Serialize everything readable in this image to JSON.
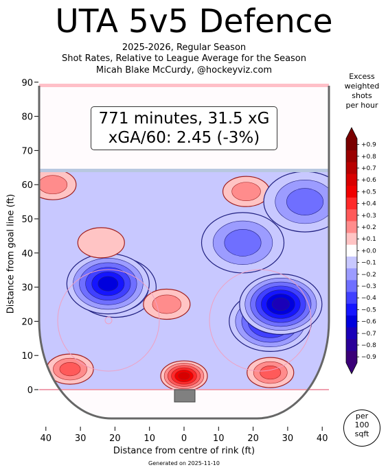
{
  "title": "UTA 5v5 Defence",
  "subtitle_lines": [
    "2025-2026, Regular Season",
    "Shot Rates, Relative to League Average for the Season",
    "Micah Blake McCurdy, @hockeyviz.com"
  ],
  "info_box": {
    "line1": "771 minutes, 31.5 xG",
    "line2": "xGA/60: 2.45 (-3%)"
  },
  "colorbar": {
    "title_lines": [
      "Excess",
      "weighted",
      "shots",
      "per hour"
    ],
    "tick_labels": [
      "+0.9",
      "+0.8",
      "+0.7",
      "+0.6",
      "+0.5",
      "+0.4",
      "+0.3",
      "+0.2",
      "+0.1",
      "+0.0",
      "−0.1",
      "−0.2",
      "−0.3",
      "−0.4",
      "−0.5",
      "−0.6",
      "−0.7",
      "−0.8",
      "−0.9"
    ],
    "colors": [
      "#7a0000",
      "#9a0000",
      "#b80000",
      "#d80000",
      "#f00000",
      "#ff2a2a",
      "#ff5a5a",
      "#ff8c8c",
      "#ffc4c4",
      "#ffffff",
      "#c8c8ff",
      "#9c9cff",
      "#6f6fff",
      "#4040ff",
      "#1515ff",
      "#0000dd",
      "#1a00b8",
      "#2a0098",
      "#3a0078"
    ]
  },
  "per_area": [
    "per",
    "100",
    "sqft"
  ],
  "generated": "Generated on 2025-11-10",
  "chart_data": {
    "type": "heatmap",
    "title": "UTA 5v5 Defence",
    "xlabel": "Distance from centre of rink (ft)",
    "ylabel": "Distance from goal line (ft)",
    "xlim": [
      -42,
      42
    ],
    "ylim": [
      -11,
      90
    ],
    "x_ticks": [
      -40,
      -30,
      -20,
      -10,
      0,
      10,
      20,
      30,
      40
    ],
    "x_tick_labels": [
      "40",
      "30",
      "20",
      "10",
      "0",
      "10",
      "20",
      "30",
      "40"
    ],
    "y_ticks": [
      0,
      10,
      20,
      30,
      40,
      50,
      60,
      70,
      80,
      90
    ],
    "y_tick_labels": [
      "0",
      "10",
      "20",
      "30",
      "40",
      "50",
      "60",
      "70",
      "80",
      "90"
    ],
    "value_range": [
      -0.9,
      0.9
    ],
    "regions": [
      {
        "x": -20,
        "y": 30,
        "value": -0.45
      },
      {
        "x": -22,
        "y": 31,
        "value": -0.6
      },
      {
        "x": 25,
        "y": 20,
        "value": -0.55
      },
      {
        "x": 28,
        "y": 25,
        "value": -0.7
      },
      {
        "x": 0,
        "y": 4,
        "value": 0.55
      },
      {
        "x": -33,
        "y": 6,
        "value": 0.3
      },
      {
        "x": -38,
        "y": 60,
        "value": 0.2
      },
      {
        "x": 18,
        "y": 58,
        "value": 0.15
      },
      {
        "x": -24,
        "y": 43,
        "value": 0.1
      },
      {
        "x": -5,
        "y": 25,
        "value": 0.15
      },
      {
        "x": 35,
        "y": 55,
        "value": -0.3
      },
      {
        "x": 17,
        "y": 43,
        "value": -0.3
      },
      {
        "x": 25,
        "y": 5,
        "value": 0.25
      }
    ]
  }
}
